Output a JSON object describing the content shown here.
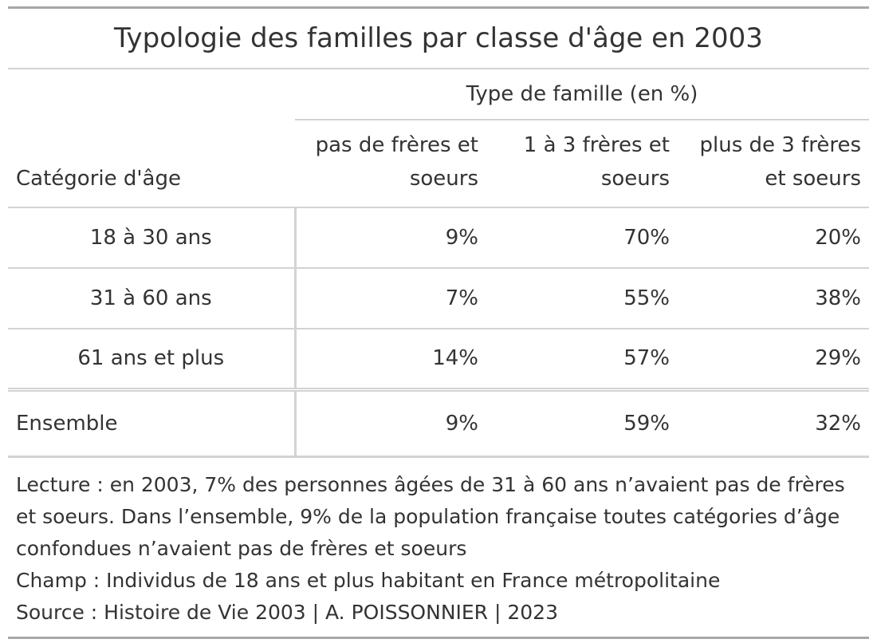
{
  "title": "Typologie des familles par classe d'âge en 2003",
  "spanner": "Type de famille (en %)",
  "columns": {
    "stub": "Catégorie d'âge",
    "c1": "pas de frères et soeurs",
    "c2": "1 à 3 frères et soeurs",
    "c3": "plus de 3 frères et soeurs"
  },
  "rows": [
    {
      "label": "18 à 30 ans",
      "c1": "9%",
      "c2": "70%",
      "c3": "20%"
    },
    {
      "label": "31 à 60 ans",
      "c1": "7%",
      "c2": "55%",
      "c3": "38%"
    },
    {
      "label": "61 ans et plus",
      "c1": "14%",
      "c2": "57%",
      "c3": "29%"
    }
  ],
  "summary": {
    "label": "Ensemble",
    "c1": "9%",
    "c2": "59%",
    "c3": "32%"
  },
  "notes": {
    "lecture": "Lecture : en 2003, 7% des personnes âgées de 31 à 60 ans n’avaient pas de frères et soeurs. Dans l’ensemble, 9% de la population française toutes catégories d’âge confondues n’avaient pas de frères et soeurs",
    "champ": "Champ : Individus de 18 ans et plus habitant en France métropolitaine",
    "source": "Source : Histoire de Vie 2003 | A. POISSONNIER | 2023"
  },
  "chart_data": {
    "type": "table",
    "title": "Typologie des familles par classe d'âge en 2003",
    "columns": [
      "Catégorie d'âge",
      "pas de frères et soeurs",
      "1 à 3 frères et soeurs",
      "plus de 3 frères et soeurs"
    ],
    "rows": [
      [
        "18 à 30 ans",
        9,
        70,
        20
      ],
      [
        "31 à 60 ans",
        7,
        55,
        38
      ],
      [
        "61 ans et plus",
        14,
        57,
        29
      ],
      [
        "Ensemble",
        9,
        59,
        32
      ]
    ]
  }
}
